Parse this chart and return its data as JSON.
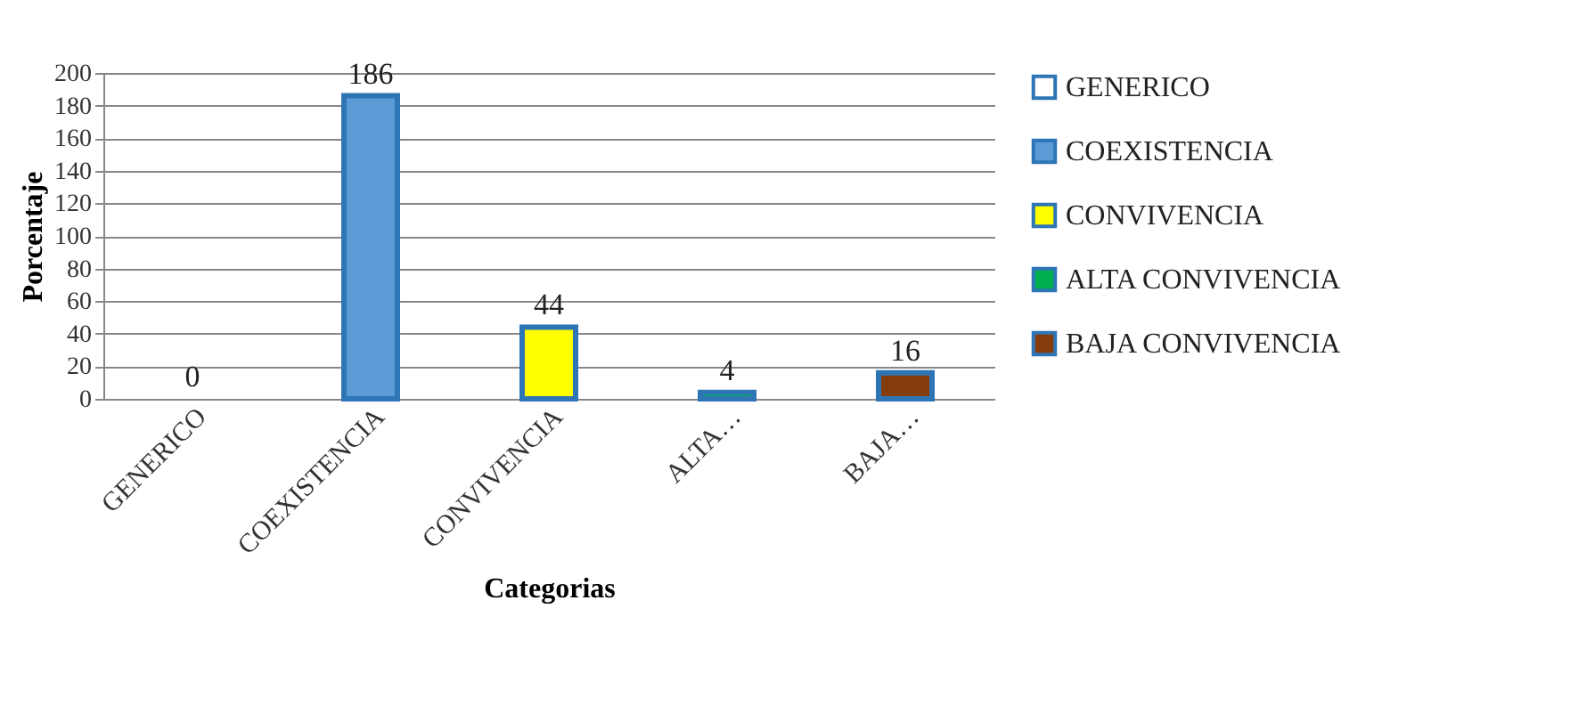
{
  "chart_data": {
    "type": "bar",
    "xlabel": "Categorias",
    "ylabel": "Porcentaje",
    "categories": [
      "GENERICO",
      "COEXISTENCIA",
      "CONVIVENCIA",
      "ALTA…",
      "BAJA…"
    ],
    "series": [
      {
        "name": "GENERICO",
        "color": "#ffffff",
        "values": [
          0,
          null,
          null,
          null,
          null
        ]
      },
      {
        "name": "COEXISTENCIA",
        "color": "#5b9bd5",
        "values": [
          null,
          186,
          null,
          null,
          null
        ]
      },
      {
        "name": "CONVIVENCIA",
        "color": "#ffff00",
        "values": [
          null,
          null,
          44,
          null,
          null
        ]
      },
      {
        "name": "ALTA CONVIVENCIA",
        "color": "#00b050",
        "values": [
          null,
          null,
          null,
          4,
          null
        ]
      },
      {
        "name": "BAJA CONVIVENCIA",
        "color": "#843c0c",
        "values": [
          null,
          null,
          null,
          null,
          16
        ]
      }
    ],
    "ylim": [
      0,
      200
    ],
    "yticks": [
      0,
      20,
      40,
      60,
      80,
      100,
      120,
      140,
      160,
      180,
      200
    ],
    "grid": "y",
    "legend": "right",
    "data_labels": true
  }
}
